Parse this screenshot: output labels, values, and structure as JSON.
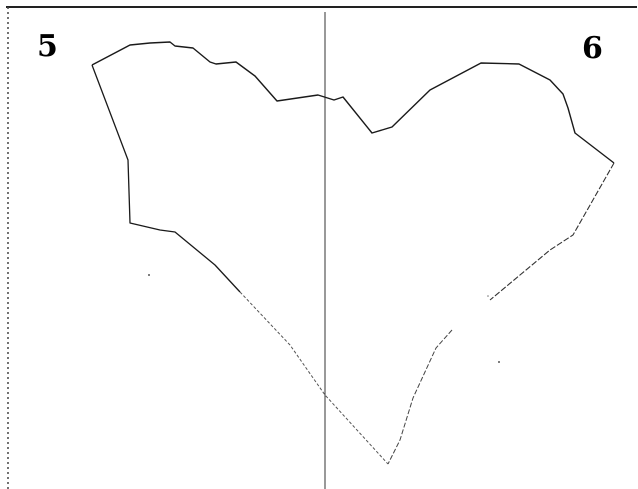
{
  "figure": {
    "left_label": "5",
    "right_label": "6",
    "line_color": "#1a1a1a",
    "frame_color": "#222222"
  }
}
